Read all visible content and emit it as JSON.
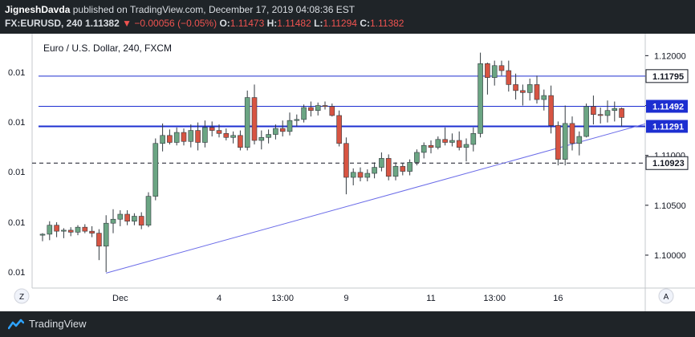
{
  "header": {
    "author": "JigneshDavda",
    "published_text": "published on TradingView.com, December 17, 2019 04:08:36 EST",
    "symbol": "FX:EURUSD, 240",
    "last_price": "1.11382",
    "change": "−0.00056 (−0.05%)",
    "o_label": "O:",
    "o_value": "1.11473",
    "h_label": "H:",
    "h_value": "1.11482",
    "l_label": "L:",
    "l_value": "1.11294",
    "c_label": "C:",
    "c_value": "1.11382"
  },
  "footer": {
    "brand": "TradingView"
  },
  "buttons": {
    "auto": "A",
    "zoom": "Z"
  },
  "colors": {
    "up": "#6ba583",
    "down": "#d75442",
    "blue_line": "#1d2fd1",
    "tag_bg": "#1d2fd1",
    "trend": "#6b6ce8",
    "grid_bg": "#ffffff",
    "axis_bg": "#ffffff",
    "dashed": "#131722"
  },
  "chart_data": {
    "type": "candlestick",
    "title": "Euro / U.S. Dollar, 240, FXCM",
    "left_ticks": [
      "0.01",
      "0.01",
      "0.01",
      "0.01",
      "0.01"
    ],
    "right_ticks": [
      "1.12000",
      "1.11500",
      "1.11000",
      "1.10500",
      "1.10000"
    ],
    "right_tick_values": [
      1.12,
      1.115,
      1.11,
      1.105,
      1.1
    ],
    "x_labels": [
      "Dec",
      "4",
      "13:00",
      "9",
      "11",
      "13:00",
      "16"
    ],
    "ylim": [
      1.0967,
      1.1222
    ],
    "horizontal_lines": [
      {
        "value": 1.11795,
        "label": "1.11795",
        "style": "solid",
        "tag": "plain"
      },
      {
        "value": 1.11492,
        "label": "1.11492",
        "style": "solid",
        "tag": "filled"
      },
      {
        "value": 1.11291,
        "label": "1.11291",
        "style": "solid-thick",
        "tag": "filled"
      },
      {
        "value": 1.10923,
        "label": "1.10923",
        "style": "dashed",
        "tag": "plain"
      }
    ],
    "trendline": {
      "start": {
        "bar": 9,
        "value": 1.0982
      },
      "end": {
        "bar": 83,
        "value": 1.1127
      }
    },
    "candles": [
      [
        1.102,
        1.1022,
        1.1014,
        1.1021
      ],
      [
        1.1021,
        1.1034,
        1.1015,
        1.103
      ],
      [
        1.103,
        1.1033,
        1.1018,
        1.1024
      ],
      [
        1.1024,
        1.1027,
        1.1017,
        1.1025
      ],
      [
        1.1025,
        1.1028,
        1.1019,
        1.1023
      ],
      [
        1.1023,
        1.103,
        1.102,
        1.1028
      ],
      [
        1.1028,
        1.1031,
        1.1022,
        1.1024
      ],
      [
        1.1024,
        1.1029,
        1.1018,
        1.1022
      ],
      [
        1.1022,
        1.1026,
        1.0995,
        1.1009
      ],
      [
        1.1009,
        1.104,
        1.0983,
        1.1032
      ],
      [
        1.1032,
        1.1046,
        1.1022,
        1.1036
      ],
      [
        1.1036,
        1.1045,
        1.1029,
        1.1041
      ],
      [
        1.1041,
        1.1045,
        1.103,
        1.1034
      ],
      [
        1.1034,
        1.1042,
        1.103,
        1.1039
      ],
      [
        1.1039,
        1.1043,
        1.1026,
        1.103
      ],
      [
        1.103,
        1.1063,
        1.1028,
        1.1059
      ],
      [
        1.1059,
        1.1117,
        1.1055,
        1.1112
      ],
      [
        1.1112,
        1.1132,
        1.1104,
        1.112
      ],
      [
        1.112,
        1.1126,
        1.1111,
        1.1113
      ],
      [
        1.1113,
        1.1128,
        1.111,
        1.1123
      ],
      [
        1.1123,
        1.1127,
        1.111,
        1.1114
      ],
      [
        1.1114,
        1.1131,
        1.1108,
        1.1125
      ],
      [
        1.1125,
        1.1133,
        1.1105,
        1.1113
      ],
      [
        1.1113,
        1.1135,
        1.1108,
        1.1128
      ],
      [
        1.1128,
        1.1134,
        1.1119,
        1.1125
      ],
      [
        1.1125,
        1.1131,
        1.1118,
        1.1122
      ],
      [
        1.1122,
        1.1127,
        1.1115,
        1.1118
      ],
      [
        1.1118,
        1.1124,
        1.1112,
        1.112
      ],
      [
        1.112,
        1.1125,
        1.1105,
        1.1108
      ],
      [
        1.1108,
        1.1165,
        1.1105,
        1.1158
      ],
      [
        1.1158,
        1.1171,
        1.1111,
        1.1115
      ],
      [
        1.1115,
        1.1125,
        1.1106,
        1.1118
      ],
      [
        1.1118,
        1.1126,
        1.1112,
        1.1121
      ],
      [
        1.1121,
        1.1131,
        1.1116,
        1.1127
      ],
      [
        1.1127,
        1.1135,
        1.1119,
        1.1124
      ],
      [
        1.1124,
        1.1143,
        1.112,
        1.1135
      ],
      [
        1.1135,
        1.1141,
        1.1129,
        1.1136
      ],
      [
        1.1136,
        1.1151,
        1.1133,
        1.1148
      ],
      [
        1.1148,
        1.1154,
        1.1139,
        1.1145
      ],
      [
        1.1145,
        1.1153,
        1.114,
        1.115
      ],
      [
        1.115,
        1.1154,
        1.1146,
        1.1149
      ],
      [
        1.1149,
        1.1152,
        1.1139,
        1.114
      ],
      [
        1.114,
        1.1145,
        1.1109,
        1.1112
      ],
      [
        1.1112,
        1.1118,
        1.1061,
        1.1078
      ],
      [
        1.1078,
        1.1087,
        1.107,
        1.1083
      ],
      [
        1.1083,
        1.1088,
        1.1074,
        1.1078
      ],
      [
        1.1078,
        1.1086,
        1.1074,
        1.1082
      ],
      [
        1.1082,
        1.1093,
        1.1077,
        1.1088
      ],
      [
        1.1088,
        1.1103,
        1.1084,
        1.1097
      ],
      [
        1.1097,
        1.1101,
        1.1075,
        1.1079
      ],
      [
        1.1079,
        1.1093,
        1.1075,
        1.1089
      ],
      [
        1.1089,
        1.1092,
        1.108,
        1.1084
      ],
      [
        1.1084,
        1.1096,
        1.108,
        1.1093
      ],
      [
        1.1093,
        1.1106,
        1.109,
        1.1103
      ],
      [
        1.1103,
        1.1113,
        1.1097,
        1.111
      ],
      [
        1.111,
        1.1115,
        1.1102,
        1.1108
      ],
      [
        1.1108,
        1.1119,
        1.1106,
        1.1116
      ],
      [
        1.1116,
        1.1128,
        1.111,
        1.1113
      ],
      [
        1.1113,
        1.1122,
        1.1109,
        1.1115
      ],
      [
        1.1115,
        1.1124,
        1.1105,
        1.1108
      ],
      [
        1.1108,
        1.1117,
        1.1094,
        1.1111
      ],
      [
        1.1111,
        1.1128,
        1.1104,
        1.1122
      ],
      [
        1.1122,
        1.1203,
        1.1118,
        1.1192
      ],
      [
        1.1192,
        1.1193,
        1.1161,
        1.1178
      ],
      [
        1.1178,
        1.1195,
        1.117,
        1.119
      ],
      [
        1.119,
        1.1195,
        1.118,
        1.1185
      ],
      [
        1.1185,
        1.1195,
        1.1164,
        1.1171
      ],
      [
        1.1171,
        1.1182,
        1.1156,
        1.1165
      ],
      [
        1.1165,
        1.1171,
        1.115,
        1.1163
      ],
      [
        1.1163,
        1.1177,
        1.1155,
        1.1171
      ],
      [
        1.1171,
        1.118,
        1.1152,
        1.1156
      ],
      [
        1.1156,
        1.1166,
        1.1145,
        1.116
      ],
      [
        1.116,
        1.117,
        1.1122,
        1.113
      ],
      [
        1.113,
        1.1134,
        1.109,
        1.1096
      ],
      [
        1.1096,
        1.115,
        1.109,
        1.1132
      ],
      [
        1.1132,
        1.1139,
        1.1105,
        1.1112
      ],
      [
        1.1112,
        1.1124,
        1.11,
        1.1119
      ],
      [
        1.1119,
        1.1152,
        1.1118,
        1.1149
      ],
      [
        1.1149,
        1.116,
        1.1131,
        1.1141
      ],
      [
        1.1141,
        1.1148,
        1.1132,
        1.114
      ],
      [
        1.114,
        1.1155,
        1.1133,
        1.1145
      ],
      [
        1.1145,
        1.1154,
        1.1134,
        1.1147
      ],
      [
        1.1147,
        1.1148,
        1.1129,
        1.1138
      ]
    ]
  }
}
